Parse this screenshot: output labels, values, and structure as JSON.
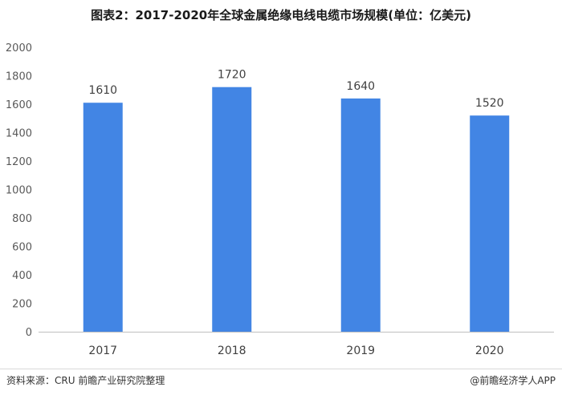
{
  "chart_data": {
    "type": "bar",
    "title": "图表2：2017-2020年全球金属绝缘电线电缆市场规模(单位：亿美元)",
    "categories": [
      "2017",
      "2018",
      "2019",
      "2020"
    ],
    "values": [
      1610,
      1720,
      1640,
      1520
    ],
    "data_labels": [
      "1610",
      "1720",
      "1640",
      "1520"
    ],
    "ylim": [
      0,
      2000
    ],
    "yticks": [
      0,
      200,
      400,
      600,
      800,
      1000,
      1200,
      1400,
      1600,
      1800,
      2000
    ],
    "xlabel": "",
    "ylabel": "",
    "grid": false,
    "bar_color": "#4285e4"
  },
  "footer": {
    "source": "资料来源：CRU 前瞻产业研究院整理",
    "brand": "@前瞻经济学人APP"
  }
}
